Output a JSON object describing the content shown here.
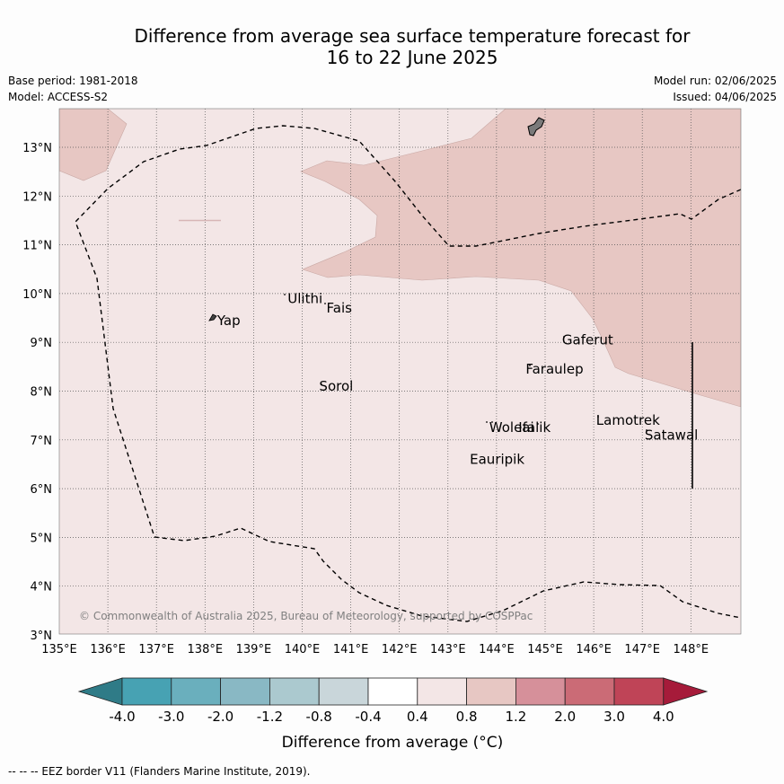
{
  "title": {
    "line1": "Difference from average sea surface temperature forecast for",
    "line2": "16 to 22 June 2025"
  },
  "meta": {
    "base_period": "Base period: 1981-2018",
    "model": "Model: ACCESS-S2",
    "model_run": "Model run: 02/06/2025",
    "issued": "Issued: 04/06/2025"
  },
  "map": {
    "lat_labels": [
      "13°N",
      "12°N",
      "11°N",
      "10°N",
      "9°N",
      "8°N",
      "7°N",
      "6°N",
      "5°N",
      "4°N",
      "3°N"
    ],
    "lon_labels": [
      "135°E",
      "136°E",
      "137°E",
      "138°E",
      "139°E",
      "140°E",
      "141°E",
      "142°E",
      "143°E",
      "144°E",
      "145°E",
      "146°E",
      "147°E",
      "148°E"
    ],
    "places": [
      {
        "name": "Yap",
        "lon": 138.25,
        "lat": 9.45
      },
      {
        "name": "Ulithi",
        "lon": 139.7,
        "lat": 9.9
      },
      {
        "name": "Fais",
        "lon": 140.5,
        "lat": 9.7
      },
      {
        "name": "Gaferut",
        "lon": 145.35,
        "lat": 9.05
      },
      {
        "name": "Faraulep",
        "lon": 144.6,
        "lat": 8.45
      },
      {
        "name": "Sorol",
        "lon": 140.35,
        "lat": 8.1
      },
      {
        "name": "Lamotrek",
        "lon": 146.05,
        "lat": 7.4
      },
      {
        "name": "Woleai",
        "lon": 143.85,
        "lat": 7.25
      },
      {
        "name": "Ifalik",
        "lon": 144.45,
        "lat": 7.25
      },
      {
        "name": "Satawal",
        "lon": 147.05,
        "lat": 7.1
      },
      {
        "name": "Eauripik",
        "lon": 143.45,
        "lat": 6.6
      }
    ],
    "copyright": "© Commonwealth of Australia 2025, Bureau of Meteorology, supported by COSPPac",
    "forecast_band": "0.4 to 0.8",
    "warm_band": "0.8 to 1.2"
  },
  "colorbar": {
    "ticks": [
      "-4.0",
      "-3.0",
      "-2.0",
      "-1.2",
      "-0.8",
      "-0.4",
      "0.4",
      "0.8",
      "1.2",
      "2.0",
      "3.0",
      "4.0"
    ],
    "colors": [
      "#2f7b87",
      "#47a2b3",
      "#6aafbd",
      "#89b8c4",
      "#abc9cf",
      "#c9d6da",
      "#ffffff",
      "#f3e6e6",
      "#e7c7c3",
      "#d6909a",
      "#cb6b76",
      "#bf4457",
      "#a61b3a"
    ],
    "label": "Difference from average (°C)"
  },
  "footer": "--  --  -- EEZ border V11 (Flanders Marine Institute, 2019)."
}
